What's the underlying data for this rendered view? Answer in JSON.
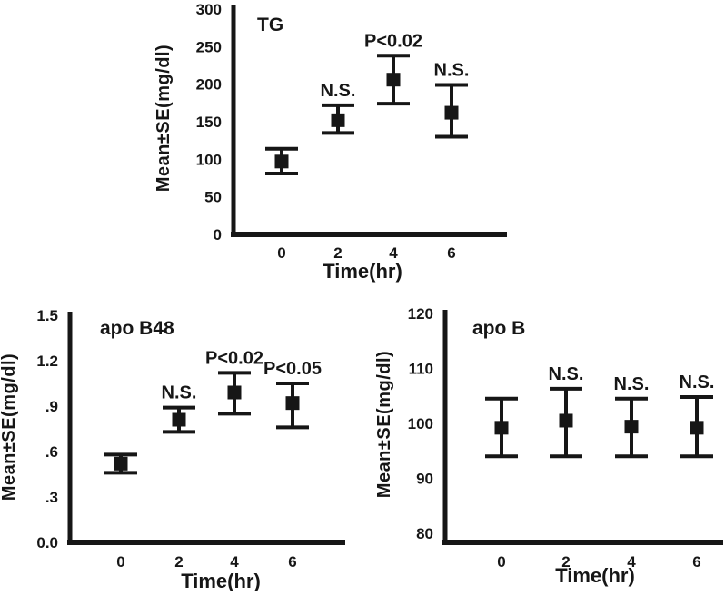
{
  "figure": {
    "background": "#ffffff",
    "ink_color": "#161616",
    "marker_shape": "filled-square"
  },
  "chart_data": [
    {
      "id": "tg",
      "type": "scatter",
      "title": "TG",
      "ylabel": "Mean±SE(mg/dl)",
      "xlabel": "Time(hr)",
      "ylim": [
        0,
        300
      ],
      "grid": false,
      "legend": "none",
      "yticks": [
        {
          "value": 0,
          "label": "0"
        },
        {
          "value": 50,
          "label": "50"
        },
        {
          "value": 100,
          "label": "100"
        },
        {
          "value": 150,
          "label": "150"
        },
        {
          "value": 200,
          "label": "200"
        },
        {
          "value": 250,
          "label": "250"
        },
        {
          "value": 300,
          "label": "300"
        }
      ],
      "categories": [
        "0",
        "2",
        "4",
        "6"
      ],
      "series": [
        {
          "name": "TG mean ± SE",
          "means": [
            97,
            152,
            206,
            162
          ],
          "se_upper": [
            114,
            172,
            238,
            199
          ],
          "se_lower": [
            81,
            135,
            174,
            130
          ]
        }
      ],
      "annotations": [
        "",
        "N.S.",
        "P<0.02",
        "N.S."
      ]
    },
    {
      "id": "apo-b48",
      "type": "scatter",
      "title": "apo B48",
      "ylabel": "Mean±SE(mg/dl)",
      "xlabel": "Time(hr)",
      "ylim": [
        0,
        1.5
      ],
      "grid": false,
      "legend": "none",
      "yticks": [
        {
          "value": 0,
          "label": "0.0"
        },
        {
          "value": 0.3,
          "label": ".3"
        },
        {
          "value": 0.6,
          "label": ".6"
        },
        {
          "value": 0.9,
          "label": ".9"
        },
        {
          "value": 1.2,
          "label": "1.2"
        },
        {
          "value": 1.5,
          "label": "1.5"
        }
      ],
      "categories": [
        "0",
        "2",
        "4",
        "6"
      ],
      "series": [
        {
          "name": "apo B48 mean ± SE",
          "means": [
            0.52,
            0.81,
            0.99,
            0.92
          ],
          "se_upper": [
            0.58,
            0.89,
            1.12,
            1.05
          ],
          "se_lower": [
            0.46,
            0.73,
            0.85,
            0.76
          ]
        }
      ],
      "annotations": [
        "",
        "N.S.",
        "P<0.02",
        "P<0.05"
      ]
    },
    {
      "id": "apo-b",
      "type": "scatter",
      "title": "apo B",
      "ylabel": "Mean±SE(mg/dl)",
      "xlabel": "Time(hr)",
      "ylim": [
        80,
        120
      ],
      "grid": false,
      "legend": "none",
      "yticks": [
        {
          "value": 80,
          "label": "80"
        },
        {
          "value": 90,
          "label": "90"
        },
        {
          "value": 100,
          "label": "100"
        },
        {
          "value": 110,
          "label": "110"
        },
        {
          "value": 120,
          "label": "120"
        }
      ],
      "categories": [
        "0",
        "2",
        "4",
        "6"
      ],
      "series": [
        {
          "name": "apo B mean ± SE",
          "means": [
            99.2,
            100.5,
            99.4,
            99.2
          ],
          "se_upper": [
            104.5,
            106.3,
            104.5,
            104.8
          ],
          "se_lower": [
            94,
            94,
            94,
            94
          ]
        }
      ],
      "annotations": [
        "",
        "N.S.",
        "N.S.",
        "N.S."
      ]
    }
  ]
}
